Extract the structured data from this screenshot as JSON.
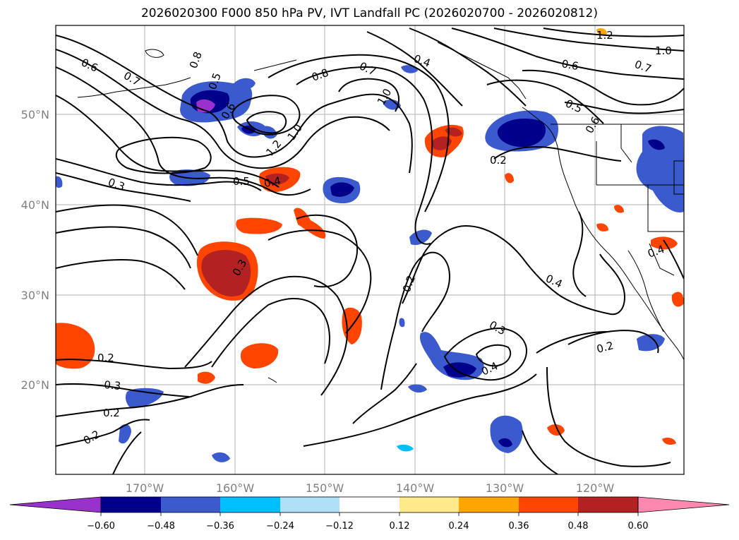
{
  "title": "2026020300 F000 850 hPa PV, IVT Landfall PC (2026020700 - 2026020812)",
  "map": {
    "lat_labels": [
      "50°N",
      "40°N",
      "30°N",
      "20°N"
    ],
    "lon_labels": [
      "170°W",
      "160°W",
      "150°W",
      "140°W",
      "130°W",
      "120°W"
    ],
    "contour_labels": [
      "0.6",
      "0.7",
      "0.8",
      "0.5",
      "0.6",
      "0.4",
      "0.7",
      "0.8",
      "1.0",
      "1.2",
      "1.0",
      "0.3",
      "0.5",
      "0.4",
      "1.2",
      "1.0",
      "0.7",
      "0.6",
      "0.5",
      "0.6",
      "0.2",
      "0.3",
      "0.2",
      "0.4",
      "0.3",
      "0.4",
      "0.2",
      "0.3",
      "0.2",
      "0.2",
      "0.2",
      "0.4"
    ]
  },
  "colorbar": {
    "colors": [
      "#9932cc",
      "#00008b",
      "#3a5acd",
      "#00bfff",
      "#b0e0f6",
      "#ffffff",
      "#ffe98a",
      "#ffa500",
      "#ff4500",
      "#b22222",
      "#ff88b0"
    ],
    "tick_labels": [
      "−0.60",
      "−0.48",
      "−0.36",
      "−0.24",
      "−0.12",
      "0.12",
      "0.24",
      "0.36",
      "0.48",
      "0.60"
    ]
  }
}
